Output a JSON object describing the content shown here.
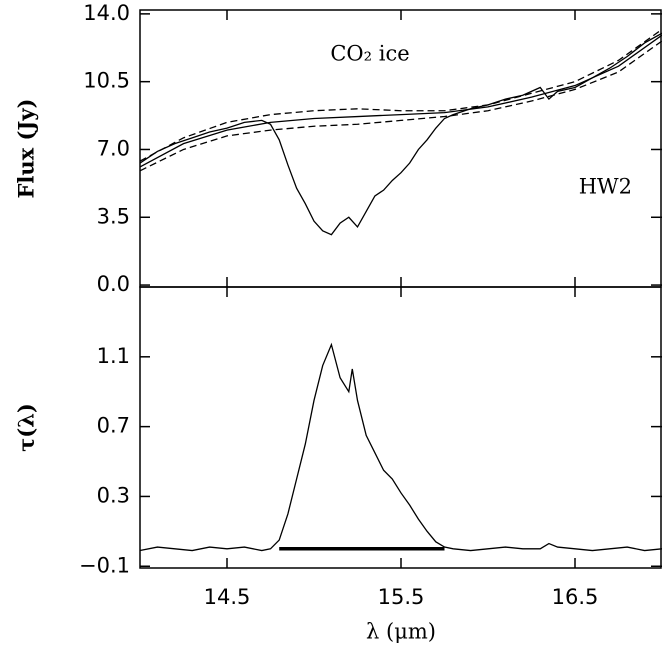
{
  "chart_data": [
    {
      "type": "line",
      "ylabel": "Flux (Jy)",
      "annotations": [
        "CO₂ ice",
        "HW2"
      ],
      "xlim": [
        14.0,
        17.0
      ],
      "xticks": [
        14.5,
        15.5,
        16.5
      ],
      "ylim": [
        -0.1,
        14.2
      ],
      "yticks": [
        {
          "value": 0,
          "label": "0.0"
        },
        3.5,
        {
          "value": 7,
          "label": "7.0"
        },
        10.5,
        {
          "value": 14,
          "label": "14.0"
        }
      ],
      "series": [
        {
          "color": "#000000",
          "dash": false,
          "x": [
            14.0,
            14.1,
            14.2,
            14.3,
            14.4,
            14.5,
            14.6,
            14.7,
            14.75,
            14.8,
            14.85,
            14.9,
            14.95,
            15.0,
            15.05,
            15.1,
            15.15,
            15.2,
            15.25,
            15.3,
            15.35,
            15.4,
            15.45,
            15.5,
            15.55,
            15.6,
            15.65,
            15.7,
            15.75,
            15.8,
            15.9,
            16.0,
            16.1,
            16.2,
            16.3,
            16.35,
            16.4,
            16.5,
            16.6,
            16.7,
            16.8,
            16.9,
            17.0
          ],
          "values": [
            6.3,
            6.9,
            7.3,
            7.6,
            7.9,
            8.1,
            8.4,
            8.5,
            8.3,
            7.5,
            6.2,
            5.0,
            4.2,
            3.3,
            2.8,
            2.6,
            3.2,
            3.5,
            3.0,
            3.8,
            4.6,
            4.9,
            5.4,
            5.8,
            6.3,
            7.0,
            7.5,
            8.1,
            8.6,
            8.8,
            9.1,
            9.3,
            9.6,
            9.8,
            10.2,
            9.6,
            10.0,
            10.2,
            10.7,
            11.2,
            11.8,
            12.5,
            13.0
          ]
        },
        {
          "color": "#000000",
          "dash": false,
          "x": [
            14.0,
            14.25,
            14.5,
            14.75,
            15.0,
            15.25,
            15.5,
            15.75,
            16.0,
            16.25,
            16.5,
            16.75,
            17.0
          ],
          "values": [
            6.1,
            7.3,
            8.0,
            8.4,
            8.6,
            8.7,
            8.8,
            8.9,
            9.2,
            9.7,
            10.3,
            11.3,
            12.9
          ]
        },
        {
          "color": "#000000",
          "dash": true,
          "x": [
            14.0,
            14.25,
            14.5,
            14.75,
            15.0,
            15.25,
            15.5,
            15.75,
            16.0,
            16.25,
            16.5,
            16.75,
            17.0
          ],
          "values": [
            6.4,
            7.6,
            8.4,
            8.8,
            9.0,
            9.1,
            9.0,
            9.0,
            9.3,
            9.9,
            10.5,
            11.6,
            13.2
          ]
        },
        {
          "color": "#000000",
          "dash": true,
          "x": [
            14.0,
            14.25,
            14.5,
            14.75,
            15.0,
            15.25,
            15.5,
            15.75,
            16.0,
            16.25,
            16.5,
            16.75,
            17.0
          ],
          "values": [
            5.9,
            7.0,
            7.7,
            8.0,
            8.2,
            8.3,
            8.5,
            8.7,
            9.0,
            9.5,
            10.1,
            11.0,
            12.6
          ]
        }
      ]
    },
    {
      "type": "line",
      "ylabel": "τ(λ)",
      "xlabel": "λ (μm)",
      "xlim": [
        14.0,
        17.0
      ],
      "xticks": [
        14.5,
        15.5,
        16.5
      ],
      "ylim": [
        -0.11,
        1.5
      ],
      "yticks": [
        {
          "value": -0.1,
          "label": "−0.1"
        },
        0.3,
        0.7,
        1.1
      ],
      "series": [
        {
          "color": "#000000",
          "dash": false,
          "x": [
            14.0,
            14.1,
            14.2,
            14.3,
            14.4,
            14.5,
            14.6,
            14.7,
            14.75,
            14.8,
            14.85,
            14.9,
            14.95,
            15.0,
            15.05,
            15.1,
            15.15,
            15.2,
            15.22,
            15.25,
            15.3,
            15.35,
            15.4,
            15.45,
            15.5,
            15.55,
            15.6,
            15.65,
            15.7,
            15.75,
            15.8,
            15.9,
            16.0,
            16.1,
            16.2,
            16.3,
            16.35,
            16.4,
            16.5,
            16.6,
            16.7,
            16.8,
            16.9,
            17.0
          ],
          "values": [
            -0.01,
            0.01,
            0.0,
            -0.01,
            0.01,
            0.0,
            0.01,
            -0.01,
            0.0,
            0.05,
            0.2,
            0.4,
            0.6,
            0.85,
            1.05,
            1.17,
            0.98,
            0.9,
            1.03,
            0.85,
            0.65,
            0.55,
            0.45,
            0.4,
            0.32,
            0.25,
            0.17,
            0.1,
            0.04,
            0.01,
            0.0,
            -0.01,
            0.0,
            0.01,
            0.0,
            0.0,
            0.03,
            0.01,
            0.0,
            -0.01,
            0.0,
            0.01,
            -0.01,
            0.0
          ]
        }
      ],
      "range_bar": {
        "x": [
          14.8,
          15.75
        ],
        "y": 0.0,
        "color": "#000000"
      }
    }
  ]
}
